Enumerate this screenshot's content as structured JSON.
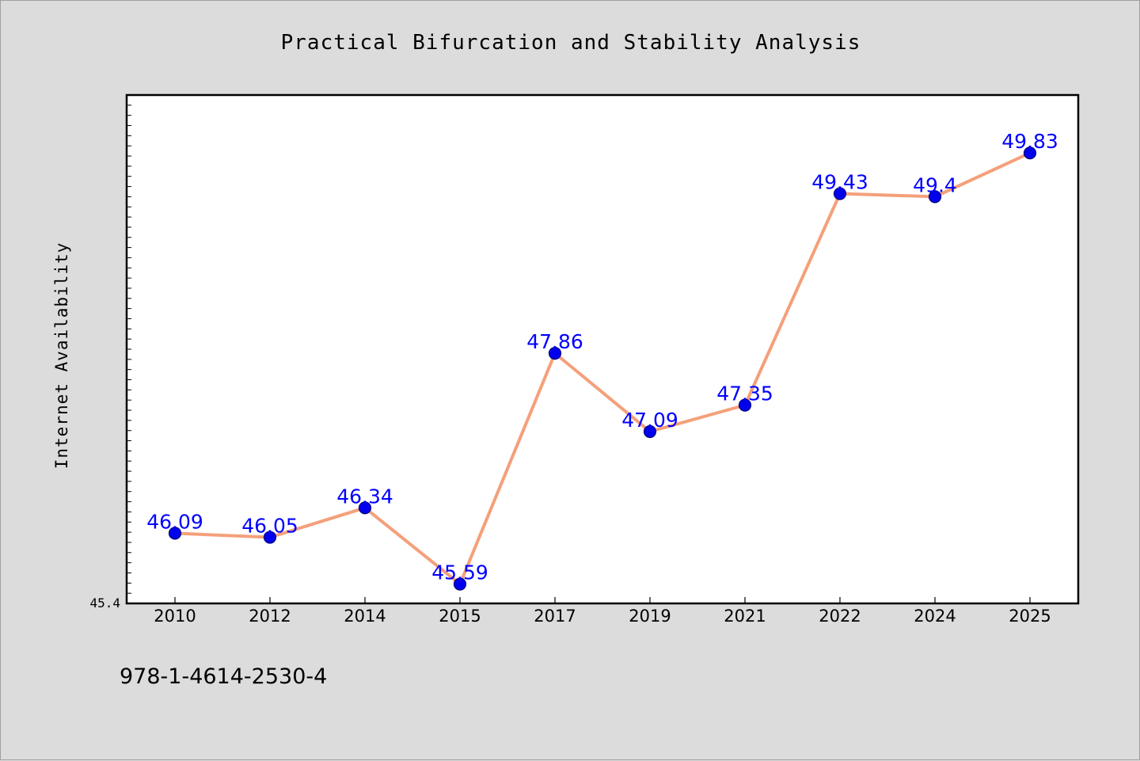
{
  "chart_data": {
    "type": "line",
    "title": "Practical Bifurcation and Stability Analysis",
    "xlabel": "",
    "ylabel": "Internet Availability",
    "categories": [
      "2010",
      "2012",
      "2014",
      "2015",
      "2017",
      "2019",
      "2021",
      "2022",
      "2024",
      "2025"
    ],
    "values": [
      46.09,
      46.05,
      46.34,
      45.59,
      47.86,
      47.09,
      47.35,
      49.43,
      49.4,
      49.83
    ],
    "data_labels": [
      "46.09",
      "46.05",
      "46.34",
      "45.59",
      "47.86",
      "47.09",
      "47.35",
      "49.43",
      "49.4",
      "49.83"
    ],
    "ylim": [
      45.4,
      50.4
    ],
    "y_tick_labels": [
      "45.4"
    ],
    "grid": false,
    "line_color": "#f4a07a",
    "marker_color": "#0000ee",
    "label_color": "#0000ff"
  },
  "footnote": "978-1-4614-2530-4"
}
